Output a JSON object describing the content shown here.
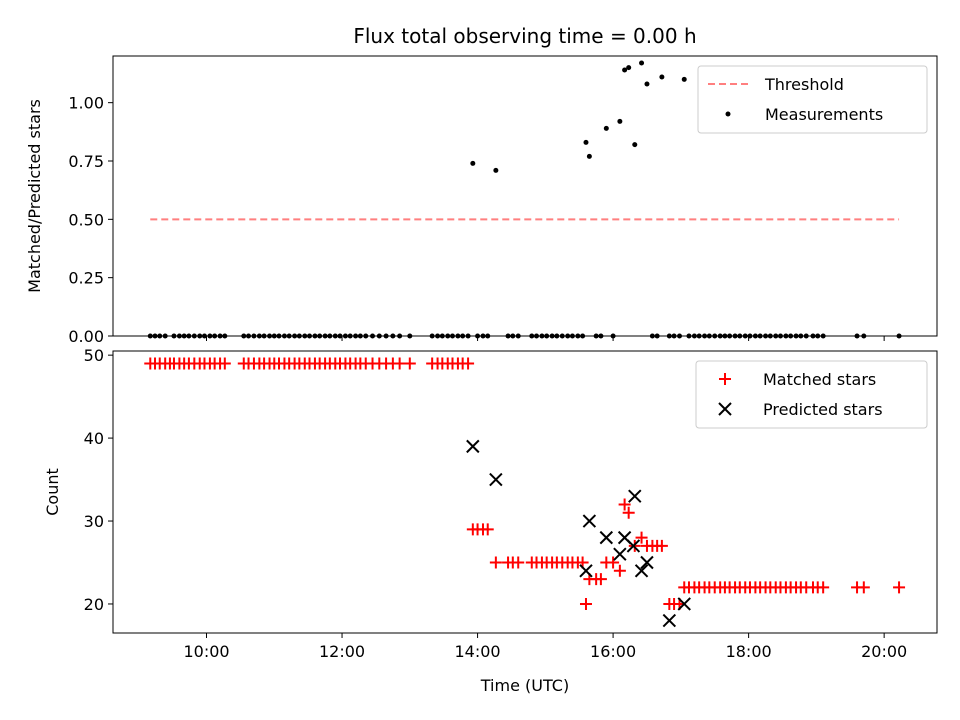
{
  "title": "Flux total observing time = 0.00 h",
  "colors": {
    "threshold": "#ff7f7f",
    "measurements": "#000000",
    "matched": "#ff0000",
    "predicted": "#000000"
  },
  "chart_data": [
    {
      "type": "scatter",
      "ylabel": "Matched/Predicted stars",
      "xlabel": "",
      "x_unit": "hours UTC",
      "xlim": [
        8.62,
        20.78
      ],
      "ylim": [
        0,
        1.2
      ],
      "x_ticks": [
        10,
        12,
        14,
        16,
        18,
        20
      ],
      "y_ticks": [
        0,
        0.25,
        0.5,
        0.75,
        1.0
      ],
      "y_tick_labels": [
        "0.00",
        "0.25",
        "0.50",
        "0.75",
        "1.00"
      ],
      "legend": {
        "position": "upper right",
        "entries": [
          "Threshold",
          "Measurements"
        ]
      },
      "series": [
        {
          "name": "Threshold",
          "type": "line",
          "style": "dashed",
          "x": [
            9.17,
            20.22
          ],
          "y": [
            0.5,
            0.5
          ]
        },
        {
          "name": "Measurements",
          "type": "scatter",
          "marker": "dot",
          "x": [
            9.17,
            9.24,
            9.31,
            9.39,
            9.52,
            9.6,
            9.67,
            9.74,
            9.82,
            9.9,
            9.97,
            10.05,
            10.12,
            10.2,
            10.27,
            10.55,
            10.62,
            10.7,
            10.78,
            10.85,
            10.93,
            11.0,
            11.07,
            11.15,
            11.22,
            11.3,
            11.37,
            11.45,
            11.52,
            11.6,
            11.67,
            11.75,
            11.82,
            11.9,
            11.97,
            12.05,
            12.12,
            12.2,
            12.27,
            12.35,
            12.45,
            12.55,
            12.65,
            12.75,
            12.85,
            13.0,
            13.33,
            13.41,
            13.48,
            13.56,
            13.63,
            13.71,
            13.78,
            13.86,
            13.93,
            14.0,
            14.08,
            14.15,
            14.27,
            14.45,
            14.52,
            14.6,
            14.8,
            14.87,
            14.95,
            15.02,
            15.1,
            15.17,
            15.25,
            15.33,
            15.4,
            15.48,
            15.55,
            15.6,
            15.65,
            15.75,
            15.82,
            15.9,
            16.0,
            16.1,
            16.17,
            16.23,
            16.32,
            16.42,
            16.5,
            16.58,
            16.65,
            16.72,
            16.83,
            16.9,
            16.98,
            17.05,
            17.12,
            17.2,
            17.27,
            17.35,
            17.42,
            17.5,
            17.58,
            17.65,
            17.72,
            17.8,
            17.87,
            17.95,
            18.02,
            18.1,
            18.17,
            18.25,
            18.32,
            18.4,
            18.47,
            18.55,
            18.62,
            18.7,
            18.77,
            18.85,
            18.95,
            19.02,
            19.1,
            19.6,
            19.7,
            20.22
          ],
          "y": [
            0,
            0,
            0,
            0,
            0,
            0,
            0,
            0,
            0,
            0,
            0,
            0,
            0,
            0,
            0,
            0,
            0,
            0,
            0,
            0,
            0,
            0,
            0,
            0,
            0,
            0,
            0,
            0,
            0,
            0,
            0,
            0,
            0,
            0,
            0,
            0,
            0,
            0,
            0,
            0,
            0,
            0,
            0,
            0,
            0,
            0,
            0,
            0,
            0,
            0,
            0,
            0,
            0,
            0,
            0.74,
            0,
            0,
            0,
            0.71,
            0,
            0,
            0,
            0,
            0,
            0,
            0,
            0,
            0,
            0,
            0,
            0,
            0,
            0,
            0.83,
            0.77,
            0,
            0,
            0.89,
            0,
            0.92,
            1.14,
            1.15,
            0.82,
            1.17,
            1.08,
            0,
            0,
            1.11,
            0,
            0,
            0,
            1.1,
            0,
            0,
            0,
            0,
            0,
            0,
            0,
            0,
            0,
            0,
            0,
            0,
            0,
            0,
            0,
            0,
            0,
            0,
            0,
            0,
            0,
            0,
            0,
            0,
            0,
            0,
            0,
            0,
            0,
            0
          ]
        }
      ]
    },
    {
      "type": "scatter",
      "ylabel": "Count",
      "xlabel": "Time (UTC)",
      "x_unit": "hours UTC",
      "xlim": [
        8.62,
        20.78
      ],
      "ylim": [
        16.5,
        50.5
      ],
      "x_ticks": [
        10,
        12,
        14,
        16,
        18,
        20
      ],
      "x_tick_labels": [
        "10:00",
        "12:00",
        "14:00",
        "16:00",
        "18:00",
        "20:00"
      ],
      "y_ticks": [
        20,
        30,
        40,
        50
      ],
      "y_tick_labels": [
        "20",
        "30",
        "40",
        "50"
      ],
      "legend": {
        "position": "upper right",
        "entries": [
          "Matched stars",
          "Predicted stars"
        ]
      },
      "series": [
        {
          "name": "Matched stars",
          "type": "scatter",
          "marker": "plus",
          "x": [
            9.17,
            9.24,
            9.31,
            9.39,
            9.46,
            9.52,
            9.6,
            9.67,
            9.74,
            9.82,
            9.9,
            9.97,
            10.05,
            10.12,
            10.2,
            10.27,
            10.55,
            10.62,
            10.7,
            10.78,
            10.85,
            10.93,
            11.0,
            11.07,
            11.15,
            11.22,
            11.3,
            11.37,
            11.45,
            11.52,
            11.6,
            11.67,
            11.75,
            11.82,
            11.9,
            11.97,
            12.05,
            12.12,
            12.2,
            12.27,
            12.35,
            12.45,
            12.55,
            12.65,
            12.75,
            12.85,
            13.0,
            13.33,
            13.41,
            13.48,
            13.56,
            13.63,
            13.71,
            13.78,
            13.86,
            13.93,
            14.0,
            14.08,
            14.15,
            14.27,
            14.45,
            14.52,
            14.6,
            14.8,
            14.87,
            14.95,
            15.02,
            15.1,
            15.17,
            15.25,
            15.33,
            15.4,
            15.48,
            15.55,
            15.6,
            15.65,
            15.75,
            15.82,
            15.9,
            16.0,
            16.1,
            16.17,
            16.23,
            16.32,
            16.42,
            16.5,
            16.58,
            16.65,
            16.72,
            16.83,
            16.9,
            16.98,
            17.05,
            17.12,
            17.2,
            17.27,
            17.35,
            17.42,
            17.5,
            17.58,
            17.65,
            17.72,
            17.8,
            17.87,
            17.95,
            18.02,
            18.1,
            18.17,
            18.25,
            18.32,
            18.4,
            18.47,
            18.55,
            18.62,
            18.7,
            18.77,
            18.85,
            18.95,
            19.02,
            19.1,
            19.6,
            19.7,
            20.22
          ],
          "y": [
            49,
            49,
            49,
            49,
            49,
            49,
            49,
            49,
            49,
            49,
            49,
            49,
            49,
            49,
            49,
            49,
            49,
            49,
            49,
            49,
            49,
            49,
            49,
            49,
            49,
            49,
            49,
            49,
            49,
            49,
            49,
            49,
            49,
            49,
            49,
            49,
            49,
            49,
            49,
            49,
            49,
            49,
            49,
            49,
            49,
            49,
            49,
            49,
            49,
            49,
            49,
            49,
            49,
            49,
            49,
            29,
            29,
            29,
            29,
            25,
            25,
            25,
            25,
            25,
            25,
            25,
            25,
            25,
            25,
            25,
            25,
            25,
            25,
            25,
            20,
            23,
            23,
            23,
            25,
            25,
            24,
            32,
            31,
            27,
            28,
            27,
            27,
            27,
            27,
            20,
            20,
            20,
            22,
            22,
            22,
            22,
            22,
            22,
            22,
            22,
            22,
            22,
            22,
            22,
            22,
            22,
            22,
            22,
            22,
            22,
            22,
            22,
            22,
            22,
            22,
            22,
            22,
            22,
            22,
            22,
            22,
            22,
            22
          ]
        },
        {
          "name": "Predicted stars",
          "type": "scatter",
          "marker": "x",
          "x": [
            13.93,
            14.27,
            15.6,
            15.65,
            15.9,
            16.1,
            16.17,
            16.3,
            16.32,
            16.42,
            16.5,
            16.83,
            17.05
          ],
          "y": [
            39,
            35,
            24,
            30,
            28,
            26,
            28,
            27,
            33,
            24,
            25,
            18,
            20
          ]
        }
      ]
    }
  ]
}
